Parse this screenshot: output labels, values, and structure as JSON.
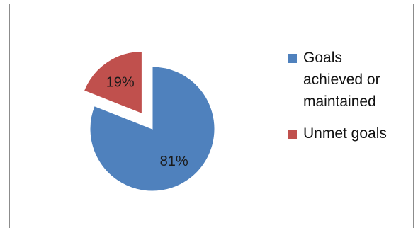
{
  "chart_data": {
    "type": "pie",
    "categories": [
      "Goals achieved or maintained",
      "Unmet goals"
    ],
    "values": [
      81,
      19
    ],
    "data_labels": [
      "81%",
      "19%"
    ],
    "colors": [
      "#4f81bd",
      "#c0504d"
    ],
    "exploded": [
      false,
      true
    ],
    "legend_position": "right",
    "title": ""
  },
  "legend": {
    "items": [
      {
        "label_line1": "Goals",
        "label_line2": "achieved or",
        "label_line3": "maintained",
        "color": "#4f81bd"
      },
      {
        "label_line1": "Unmet goals",
        "color": "#c0504d"
      }
    ]
  }
}
